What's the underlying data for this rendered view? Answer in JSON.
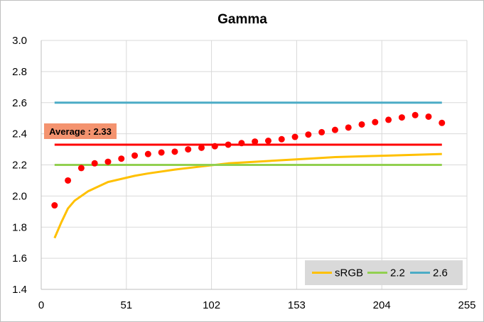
{
  "chart_data": {
    "type": "line",
    "title": "Gamma",
    "xlabel": "",
    "ylabel": "",
    "xlim": [
      0,
      255
    ],
    "ylim": [
      1.4,
      3.0
    ],
    "x_ticks": [
      "0",
      "51",
      "102",
      "153",
      "204",
      "255"
    ],
    "y_ticks": [
      "1.4",
      "1.6",
      "1.8",
      "2.0",
      "2.2",
      "2.4",
      "2.6",
      "2.8",
      "3.0"
    ],
    "grid": "vertical and horizontal major gridlines",
    "legend_position": "bottom-right",
    "series": [
      {
        "name": "sRGB",
        "kind": "line",
        "color": "#ffc000",
        "x": [
          8,
          12,
          16,
          20,
          24,
          28,
          32,
          40,
          48,
          56,
          64,
          80,
          96,
          112,
          128,
          144,
          160,
          176,
          192,
          208,
          224,
          240
        ],
        "y": [
          1.73,
          1.83,
          1.92,
          1.97,
          2.0,
          2.03,
          2.05,
          2.09,
          2.11,
          2.13,
          2.145,
          2.17,
          2.19,
          2.21,
          2.22,
          2.23,
          2.24,
          2.25,
          2.255,
          2.26,
          2.265,
          2.27
        ]
      },
      {
        "name": "2.2",
        "kind": "line",
        "color": "#92d050",
        "x": [
          8,
          240
        ],
        "y": [
          2.2,
          2.2
        ]
      },
      {
        "name": "2.6",
        "kind": "line",
        "color": "#4bacc6",
        "x": [
          8,
          240
        ],
        "y": [
          2.6,
          2.6
        ]
      },
      {
        "name": "",
        "kind": "line",
        "color": "#ff0000",
        "x": [
          8,
          240
        ],
        "y": [
          2.33,
          2.33
        ]
      },
      {
        "name": "",
        "kind": "scatter",
        "color": "#ff0000",
        "x": [
          8,
          16,
          24,
          32,
          40,
          48,
          56,
          64,
          72,
          80,
          88,
          96,
          104,
          112,
          120,
          128,
          136,
          144,
          152,
          160,
          168,
          176,
          184,
          192,
          200,
          208,
          216,
          224,
          232,
          240
        ],
        "y": [
          1.94,
          2.1,
          2.18,
          2.21,
          2.22,
          2.24,
          2.26,
          2.27,
          2.28,
          2.285,
          2.3,
          2.31,
          2.32,
          2.33,
          2.34,
          2.35,
          2.355,
          2.365,
          2.38,
          2.395,
          2.41,
          2.425,
          2.44,
          2.46,
          2.475,
          2.49,
          2.505,
          2.52,
          2.51,
          2.47
        ]
      }
    ],
    "annotation": {
      "text": "Average : 2.33",
      "value": 2.33,
      "background": "#f4936f"
    },
    "colors": {
      "grid": "#d9d9d9",
      "axis": "#bfbfbf",
      "legend_bg": "#d9d9d9",
      "last_point": "#ff0000"
    }
  }
}
